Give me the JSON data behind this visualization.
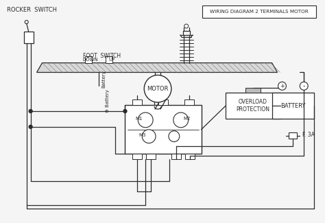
{
  "title": "WIRING DIAGRAM 2 TERMINALS MOTOR",
  "bg_color": "#f5f5f5",
  "line_color": "#2a2a2a",
  "label_rocker": "ROCKER  SWITCH",
  "label_foot": "FOOT  SWITCH",
  "label_down": "DOWN",
  "label_up": "UP",
  "label_battery_wire": "Battery",
  "label_battery_sym": "⊕ Battery",
  "label_motor": "MOTOR",
  "label_m1": "M1",
  "label_m2": "M2",
  "label_m3": "M3",
  "label_overload": "OVERLOAD\nPROTECTION",
  "label_battery": "BATTERY",
  "label_fuse": "F. 3A",
  "figsize": [
    4.74,
    3.25
  ],
  "dpi": 100
}
